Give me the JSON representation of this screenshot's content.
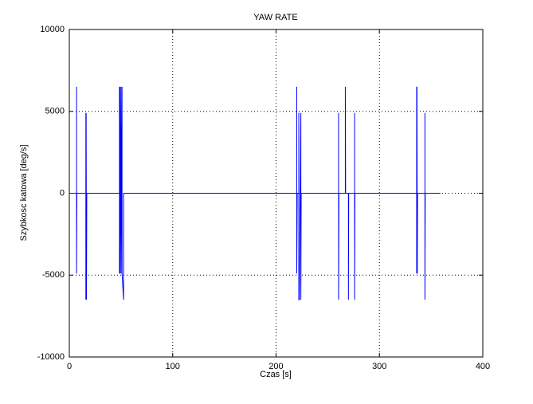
{
  "chart_data": {
    "type": "line",
    "title": "YAW RATE",
    "x_label": "Czas [s]",
    "y_label": "Szybkosc katowa [deg/s]",
    "x": [
      0,
      7,
      7,
      7,
      7.3,
      16,
      16,
      16,
      16.3,
      16.6,
      16.9,
      48.5,
      48.5,
      48.5,
      49,
      49,
      50,
      50,
      51,
      51,
      52.5,
      52.5,
      220,
      220,
      220,
      220.5,
      222,
      222,
      222,
      222.5,
      224,
      224,
      224.3,
      260.5,
      260.5,
      260.5,
      260.8,
      267,
      267,
      267.3,
      270,
      270,
      270.3,
      276,
      276,
      276,
      276.3,
      336,
      336,
      336,
      336.3,
      336.6,
      336.9,
      344,
      344,
      344,
      344.3,
      359
    ],
    "series": [
      {
        "color": "#0000ff",
        "values": [
          0,
          0,
          6500,
          -4900,
          0,
          0,
          4900,
          -6500,
          4900,
          -6500,
          0,
          0,
          6500,
          -4900,
          6500,
          -4900,
          6500,
          -4900,
          6500,
          -4900,
          -6500,
          0,
          0,
          6500,
          -4900,
          0,
          0,
          4900,
          -6500,
          -6500,
          4900,
          -6500,
          0,
          0,
          4900,
          -6500,
          0,
          0,
          6500,
          0,
          0,
          -6500,
          0,
          0,
          4900,
          -6500,
          0,
          0,
          6500,
          -4900,
          6500,
          -4900,
          0,
          0,
          4900,
          -6500,
          0,
          0
        ]
      }
    ],
    "xlim": [
      0,
      400
    ],
    "xticks": [
      0,
      100,
      200,
      300,
      400
    ],
    "ylim": [
      -10000,
      10000
    ],
    "yticks": [
      -10000,
      -5000,
      0,
      5000,
      10000
    ],
    "grid": true
  }
}
